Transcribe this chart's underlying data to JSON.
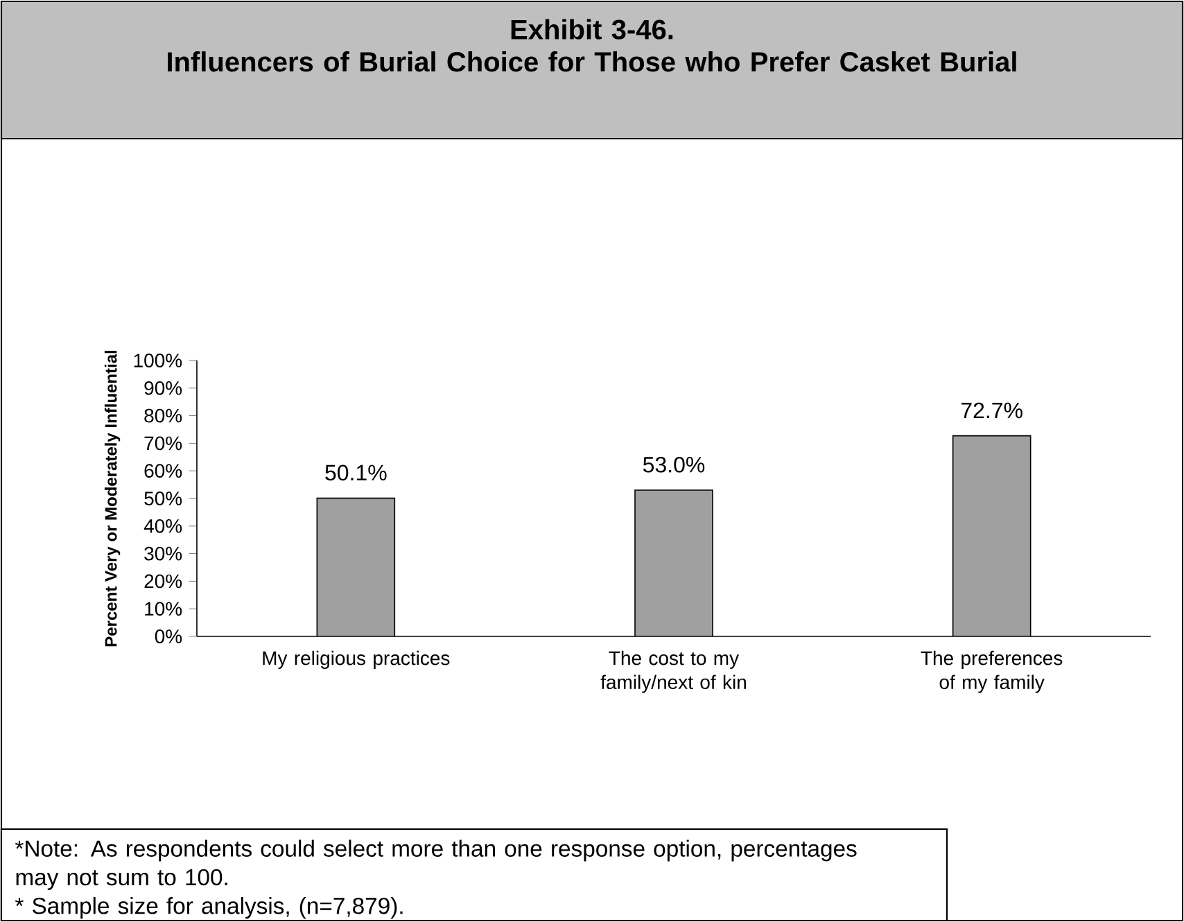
{
  "chart_data": {
    "type": "bar",
    "title": "Exhibit 3-46.",
    "subtitle": "Influencers of Burial Choice for Those who Prefer Casket Burial",
    "ylabel": "Percent Very or Moderately Influential",
    "categories": [
      "My religious practices",
      "The cost to my family/next of kin",
      "The preferences of my family"
    ],
    "values": [
      50.1,
      53.0,
      72.7
    ],
    "value_labels": [
      "50.1%",
      "53.0%",
      "72.7%"
    ],
    "color": "#a0a0a0",
    "ylim": [
      0,
      100
    ],
    "yticks": [
      {
        "value": 0,
        "label": "0%"
      },
      {
        "value": 10,
        "label": "10%"
      },
      {
        "value": 20,
        "label": "20%"
      },
      {
        "value": 30,
        "label": "30%"
      },
      {
        "value": 40,
        "label": "40%"
      },
      {
        "value": 50,
        "label": "50%"
      },
      {
        "value": 60,
        "label": "60%"
      },
      {
        "value": 70,
        "label": "70%"
      },
      {
        "value": 80,
        "label": "80%"
      },
      {
        "value": 90,
        "label": "90%"
      },
      {
        "value": 100,
        "label": "100%"
      }
    ],
    "annotations": [
      "*Note: As respondents could select more than one response option, percentages may not sum to 100.",
      "* Sample size for analysis, (n=7,879)."
    ]
  }
}
